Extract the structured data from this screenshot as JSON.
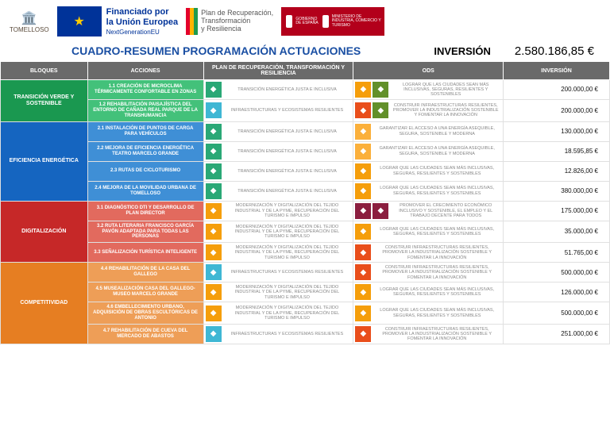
{
  "header": {
    "tomelloso": "TOMELLOSO",
    "eu_line1": "Financiado por",
    "eu_line2": "la Unión Europea",
    "eu_line3": "NextGenerationEU",
    "plan_line1": "Plan de Recuperación,",
    "plan_line2": "Transformación",
    "plan_line3": "y Resiliencia",
    "plan_bar_colors": [
      "#e4002b",
      "#ffb400",
      "#1f9b4e"
    ],
    "gov_left": "GOBIERNO DE ESPAÑA",
    "gov_right": "MINISTERIO DE INDUSTRIA, COMERCIO Y TURISMO"
  },
  "title": {
    "main": "CUADRO-RESUMEN  PROGRAMACIÓN ACTUACIONES",
    "inv_label": "INVERSIÓN",
    "inv_value": "2.580.186,85 €"
  },
  "columns": [
    "BLOQUES",
    "ACCIONES",
    "PLAN DE RECUPERACIÓN, TRANSFORMACIÓN Y RESILIENCIA",
    "ODS",
    "INVERSIÓN"
  ],
  "colors": {
    "header_bg": "#6a6a6a",
    "plan_icon1": "#2aa876",
    "plan_icon2": "#3fb7d4",
    "ods_city": "#f59e0b",
    "ods_ind": "#e94e1b",
    "ods_energy": "#fbb03b",
    "ods_growth": "#8b1e3f",
    "ods_alt": "#62902a"
  },
  "blocks": [
    {
      "name": "TRANSICIÓN VERDE Y SOSTENIBLE",
      "bg": "#1a9850",
      "action_bg": "#43c17a",
      "rows": [
        {
          "action": "1.1 CREACIÓN DE MICROCLIMA TÉRMICAMENTE CONFORTABLE EN ZONAS",
          "plan_icon_bg": "#2aa876",
          "plan_text": "TRANSICIÓN ENERGÉTICA JUSTA E INCLUSIVA",
          "ods": [
            {
              "bg": "#f59e0b"
            },
            {
              "bg": "#62902a"
            }
          ],
          "ods_text": "LOGRAR QUE LAS CIUDADES SEAN MÁS INCLUSIVAS, SEGURAS, RESILIENTES Y SOSTENIBLES",
          "inv": "200.000,00 €"
        },
        {
          "action": "1.2 REHABILITACIÓN PAISAJÍSTICA DEL ENTORNO DE CAÑADA REAL PARQUE DE LA TRANSHUMANCIA",
          "plan_icon_bg": "#3fb7d4",
          "plan_text": "INFRAESTRUCTURAS Y ECOSISTEMAS RESILIENTES",
          "ods": [
            {
              "bg": "#e94e1b"
            },
            {
              "bg": "#62902a"
            }
          ],
          "ods_text": "CONSTRUIR INFRAESTRUCTURAS RESILIENTES, PROMOVER LA INDUSTRIALIZACIÓN SOSTENIBLE Y FOMENTAR LA INNOVACIÓN",
          "inv": "200.000,00 €"
        }
      ]
    },
    {
      "name": "EFICIENCIA ENERGÉTICA",
      "bg": "#1565c0",
      "action_bg": "#3f8fd6",
      "rows": [
        {
          "action": "2.1 INSTALACIÓN DE PUNTOS DE CARGA PARA VEHÍCULOS",
          "plan_icon_bg": "#2aa876",
          "plan_text": "TRANSICIÓN ENERGÉTICA JUSTA E INCLUSIVA",
          "ods": [
            {
              "bg": "#fbb03b"
            }
          ],
          "ods_text": "GARANTIZAR EL ACCESO A UNA ENERGÍA ASEQUIBLE, SEGURA, SOSTENIBLE Y MODERNA",
          "inv": "130.000,00 €"
        },
        {
          "action": "2.2 MEJORA DE EFICIENCIA ENERGÉTICA TEATRO MARCELO GRANDE",
          "plan_icon_bg": "#2aa876",
          "plan_text": "TRANSICIÓN ENERGÉTICA JUSTA E INCLUSIVA",
          "ods": [
            {
              "bg": "#fbb03b"
            }
          ],
          "ods_text": "GARANTIZAR EL ACCESO A UNA ENERGÍA ASEQUIBLE, SEGURA, SOSTENIBLE Y MODERNA",
          "inv": "18.595,85 €"
        },
        {
          "action": "2.3 RUTAS DE CICLOTURISMO",
          "plan_icon_bg": "#2aa876",
          "plan_text": "TRANSICIÓN ENERGÉTICA JUSTA E INCLUSIVA",
          "ods": [
            {
              "bg": "#f59e0b"
            }
          ],
          "ods_text": "LOGRAR QUE LAS CIUDADES SEAN MÁS INCLUSIVAS, SEGURAS, RESILIENTES Y SOSTENIBLES",
          "inv": "12.826,00 €"
        },
        {
          "action": "2.4 MEJORA DE LA MOVILIDAD URBANA DE TOMELLOSO",
          "plan_icon_bg": "#2aa876",
          "plan_text": "TRANSICIÓN ENERGÉTICA JUSTA E INCLUSIVA",
          "ods": [
            {
              "bg": "#f59e0b"
            }
          ],
          "ods_text": "LOGRAR QUE LAS CIUDADES SEAN MÁS INCLUSIVAS, SEGURAS, RESILIENTES Y SOSTENIBLES",
          "inv": "380.000,00 €"
        }
      ]
    },
    {
      "name": "DIGITALIZACIÓN",
      "bg": "#c62828",
      "action_bg": "#e26a5e",
      "rows": [
        {
          "action": "3.1 DIAGNÓSTICO DTI Y DESARROLLO DE PLAN DIRECTOR",
          "plan_icon_bg": "#f59e0b",
          "plan_text": "MODERNIZACIÓN Y DIGITALIZACIÓN DEL TEJIDO INDUSTRIAL Y DE LA PYME, RECUPERACIÓN DEL TURISMO E IMPULSO",
          "ods": [
            {
              "bg": "#8b1e3f"
            },
            {
              "bg": "#8b1e3f"
            }
          ],
          "ods_text": "PROMOVER EL CRECIMIENTO ECONÓMICO INCLUSIVO Y SOSTENIBLE, EL EMPLEO Y EL TRABAJO DECENTE PARA TODOS",
          "inv": "175.000,00 €"
        },
        {
          "action": "3.2 RUTA LITERARIA FRANCISCO GARCÍA PAVÓN ADAPTADA PARA TODAS LAS PERSONAS",
          "plan_icon_bg": "#f59e0b",
          "plan_text": "MODERNIZACIÓN Y DIGITALIZACIÓN DEL TEJIDO INDUSTRIAL Y DE LA PYME, RECUPERACIÓN DEL TURISMO E IMPULSO",
          "ods": [
            {
              "bg": "#f59e0b"
            }
          ],
          "ods_text": "LOGRAR QUE LAS CIUDADES SEAN MÁS INCLUSIVAS, SEGURAS, RESILIENTES Y SOSTENIBLES",
          "inv": "35.000,00 €"
        },
        {
          "action": "3.3 SEÑALIZACIÓN TURÍSTICA INTELIGENTE",
          "plan_icon_bg": "#f59e0b",
          "plan_text": "MODERNIZACIÓN Y DIGITALIZACIÓN DEL TEJIDO INDUSTRIAL Y DE LA PYME, RECUPERACIÓN DEL TURISMO E IMPULSO",
          "ods": [
            {
              "bg": "#e94e1b"
            }
          ],
          "ods_text": "CONSTRUIR INFRAESTRUCTURAS RESILIENTES, PROMOVER LA INDUSTRIALIZACIÓN SOSTENIBLE Y FOMENTAR LA INNOVACIÓN",
          "inv": "51.765,00 €"
        }
      ]
    },
    {
      "name": "COMPETITIVIDAD",
      "bg": "#e67e22",
      "action_bg": "#ee9e57",
      "rows": [
        {
          "action": "4.4 REHABILITACIÓN DE LA CASA DEL GALLEGO",
          "plan_icon_bg": "#3fb7d4",
          "plan_text": "INFRAESTRUCTURAS Y ECOSISTEMAS RESILIENTES",
          "ods": [
            {
              "bg": "#e94e1b"
            }
          ],
          "ods_text": "CONSTRUIR INFRAESTRUCTURAS RESILIENTES, PROMOVER LA INDUSTRIALIZACIÓN SOSTENIBLE Y FOMENTAR LA INNOVACIÓN",
          "inv": "500.000,00 €"
        },
        {
          "action": "4.5 MUSEALIZACIÓN CASA DEL GALLEGO- MUSEO MARCELO GRANDE",
          "plan_icon_bg": "#f59e0b",
          "plan_text": "MODERNIZACIÓN Y DIGITALIZACIÓN DEL TEJIDO INDUSTRIAL Y DE LA PYME, RECUPERACIÓN DEL TURISMO E IMPULSO",
          "ods": [
            {
              "bg": "#f59e0b"
            }
          ],
          "ods_text": "LOGRAR QUE LAS CIUDADES SEAN MÁS INCLUSIVAS, SEGURAS, RESILIENTES Y SOSTENIBLES",
          "inv": "126.000,00 €"
        },
        {
          "action": "4.6 EMBELLECIMIENTO URBANO, ADQUISICIÓN DE OBRAS ESCULTÓRICAS DE ANTONIO",
          "plan_icon_bg": "#f59e0b",
          "plan_text": "MODERNIZACIÓN Y DIGITALIZACIÓN DEL TEJIDO INDUSTRIAL Y DE LA PYME, RECUPERACIÓN DEL TURISMO E IMPULSO",
          "ods": [
            {
              "bg": "#f59e0b"
            }
          ],
          "ods_text": "LOGRAR QUE LAS CIUDADES SEAN MÁS INCLUSIVAS, SEGURAS, RESILIENTES Y SOSTENIBLES",
          "inv": "500.000,00 €"
        },
        {
          "action": "4.7 REHABILITACIÓN DE CUEVA DEL MERCADO DE ABASTOS",
          "plan_icon_bg": "#3fb7d4",
          "plan_text": "INFRAESTRUCTURAS Y ECOSISTEMAS RESILIENTES",
          "ods": [
            {
              "bg": "#e94e1b"
            }
          ],
          "ods_text": "CONSTRUIR INFRAESTRUCTURAS RESILIENTES, PROMOVER LA INDUSTRIALIZACIÓN SOSTENIBLE Y FOMENTAR LA INNOVACIÓN",
          "inv": "251.000,00 €"
        }
      ]
    }
  ]
}
